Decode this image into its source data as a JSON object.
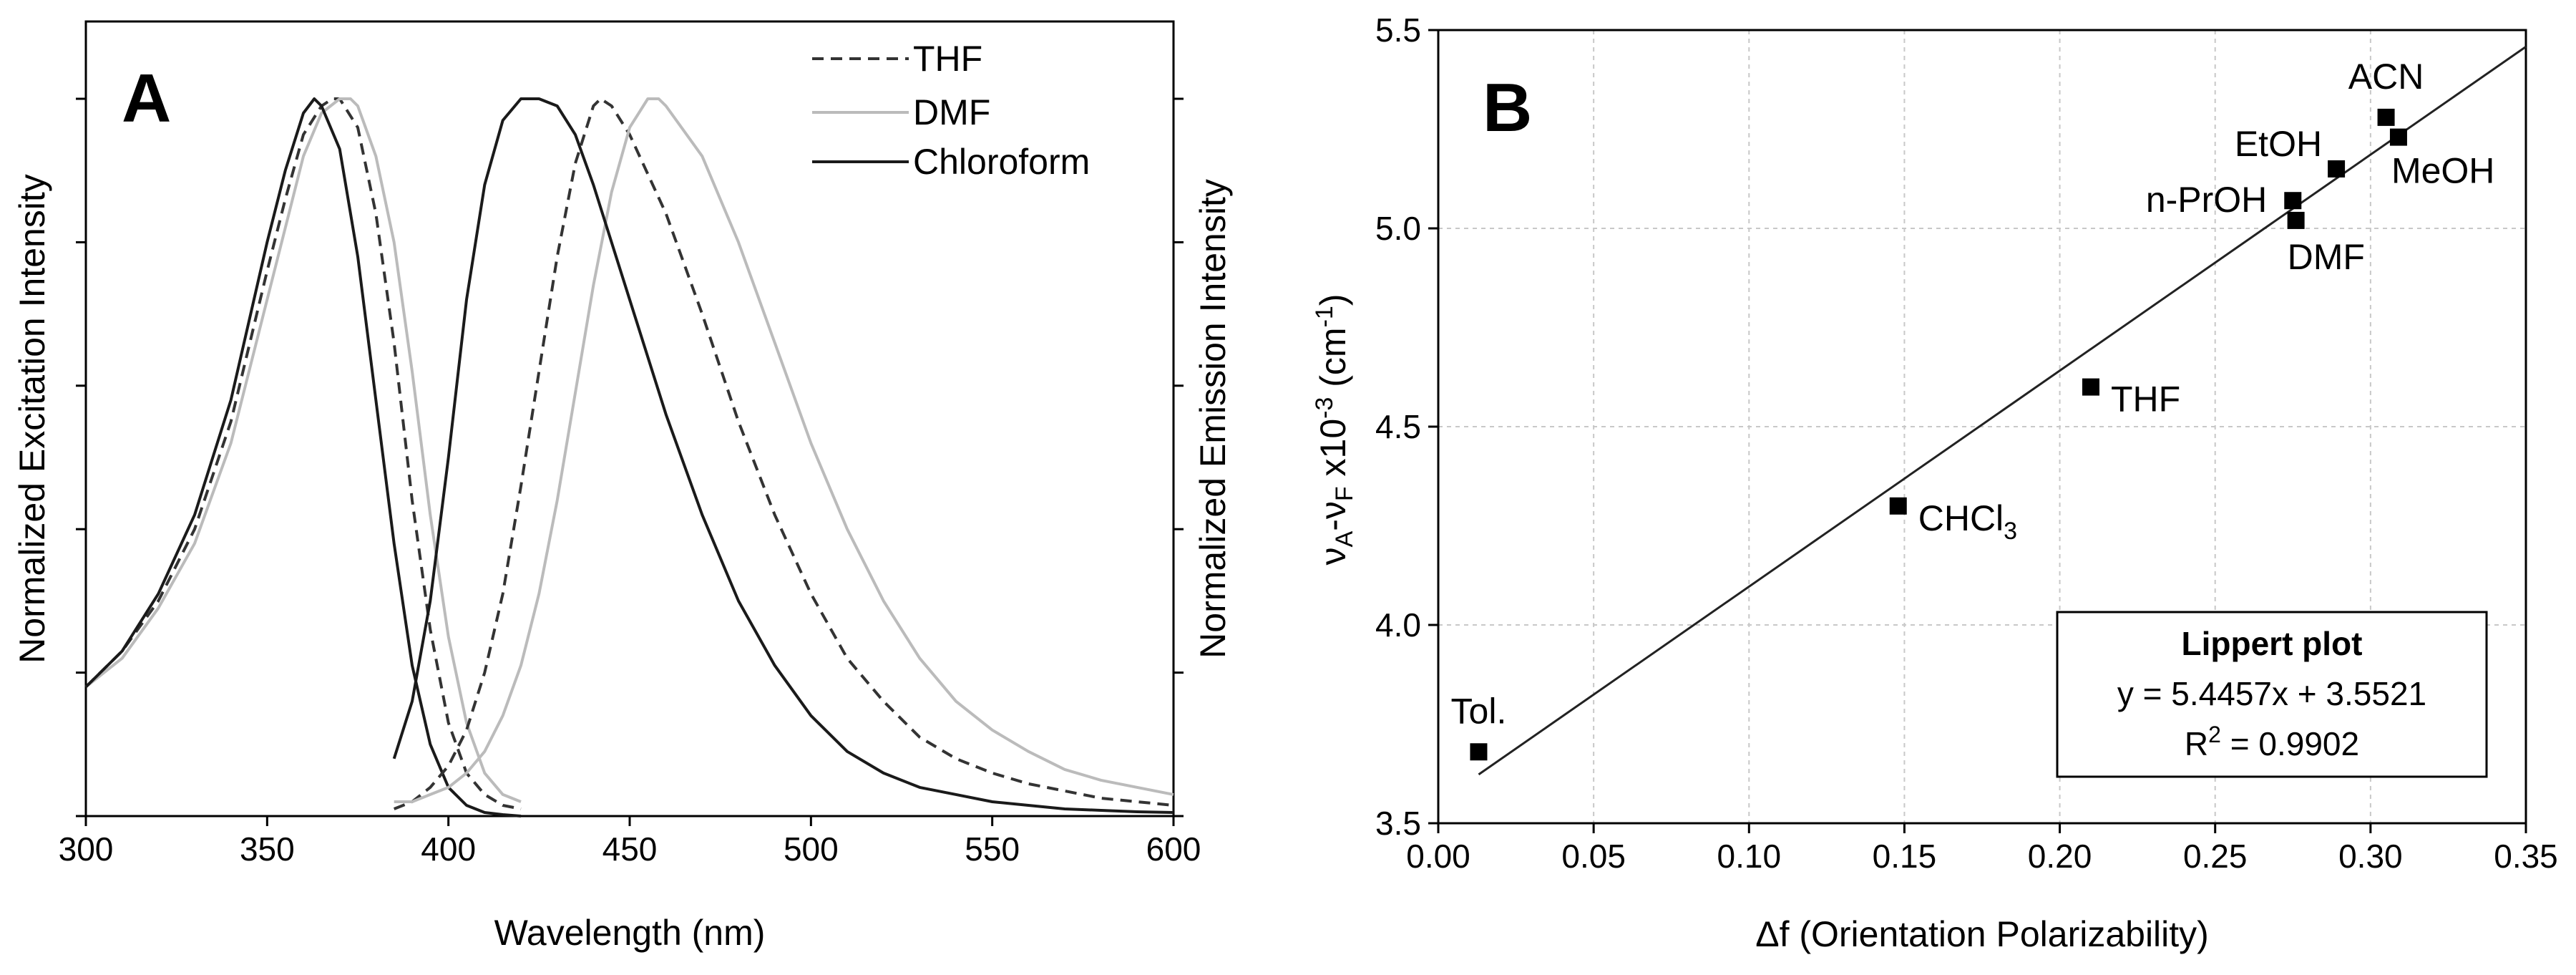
{
  "chart_data": [
    {
      "type": "line",
      "panel_label": "A",
      "title": "",
      "xlabel": "Wavelength (nm)",
      "ylabel": "Normalized Excitation Intensity",
      "ylabel_right": "Normalized Emission Intensity",
      "xlim": [
        300,
        600
      ],
      "ylim": [
        0,
        1.0
      ],
      "x_ticks": [
        "300",
        "350",
        "400",
        "450",
        "500",
        "550",
        "600"
      ],
      "grid": false,
      "legend_position": "top-right",
      "legend": [
        "THF",
        "DMF",
        "Chloroform"
      ],
      "series": [
        {
          "name": "THF",
          "kind": "excitation",
          "style": "dashed",
          "color": "#333333",
          "x": [
            300,
            310,
            320,
            330,
            340,
            350,
            355,
            360,
            365,
            368,
            370,
            375,
            380,
            385,
            390,
            395,
            400,
            405,
            410,
            415,
            420
          ],
          "y": [
            0.18,
            0.23,
            0.3,
            0.4,
            0.55,
            0.76,
            0.86,
            0.95,
            0.99,
            1.0,
            1.0,
            0.96,
            0.84,
            0.66,
            0.44,
            0.26,
            0.13,
            0.06,
            0.03,
            0.015,
            0.01
          ]
        },
        {
          "name": "DMF",
          "kind": "excitation",
          "style": "solid",
          "color": "#bbbbbb",
          "x": [
            300,
            310,
            320,
            330,
            340,
            350,
            355,
            360,
            365,
            370,
            373,
            375,
            380,
            385,
            390,
            395,
            400,
            405,
            410,
            415,
            420
          ],
          "y": [
            0.18,
            0.22,
            0.29,
            0.38,
            0.52,
            0.72,
            0.82,
            0.92,
            0.98,
            1.0,
            1.0,
            0.99,
            0.92,
            0.8,
            0.62,
            0.42,
            0.25,
            0.13,
            0.06,
            0.03,
            0.02
          ]
        },
        {
          "name": "Chloroform",
          "kind": "excitation",
          "style": "solid",
          "color": "#1a1a1a",
          "x": [
            300,
            310,
            320,
            330,
            340,
            350,
            355,
            360,
            363,
            365,
            370,
            375,
            380,
            385,
            390,
            395,
            400,
            405,
            410,
            415,
            420
          ],
          "y": [
            0.18,
            0.23,
            0.31,
            0.42,
            0.58,
            0.8,
            0.9,
            0.98,
            1.0,
            0.99,
            0.93,
            0.78,
            0.58,
            0.38,
            0.21,
            0.1,
            0.04,
            0.015,
            0.005,
            0.002,
            0.0
          ]
        },
        {
          "name": "THF",
          "kind": "emission",
          "style": "dashed",
          "color": "#333333",
          "x": [
            385,
            390,
            395,
            400,
            405,
            410,
            415,
            420,
            425,
            430,
            435,
            440,
            442,
            445,
            450,
            460,
            470,
            480,
            490,
            500,
            510,
            520,
            530,
            540,
            550,
            560,
            570,
            580,
            590,
            600
          ],
          "y": [
            0.01,
            0.02,
            0.04,
            0.07,
            0.12,
            0.2,
            0.31,
            0.46,
            0.62,
            0.78,
            0.91,
            0.99,
            1.0,
            0.99,
            0.95,
            0.84,
            0.7,
            0.55,
            0.42,
            0.31,
            0.22,
            0.16,
            0.11,
            0.08,
            0.06,
            0.045,
            0.035,
            0.025,
            0.02,
            0.015
          ]
        },
        {
          "name": "DMF",
          "kind": "emission",
          "style": "solid",
          "color": "#bbbbbb",
          "x": [
            385,
            390,
            395,
            400,
            405,
            410,
            415,
            420,
            425,
            430,
            435,
            440,
            445,
            450,
            455,
            458,
            460,
            470,
            480,
            490,
            500,
            510,
            520,
            530,
            540,
            550,
            560,
            570,
            580,
            590,
            600
          ],
          "y": [
            0.02,
            0.02,
            0.03,
            0.04,
            0.06,
            0.09,
            0.14,
            0.21,
            0.31,
            0.44,
            0.59,
            0.74,
            0.87,
            0.96,
            1.0,
            1.0,
            0.99,
            0.92,
            0.8,
            0.66,
            0.52,
            0.4,
            0.3,
            0.22,
            0.16,
            0.12,
            0.09,
            0.065,
            0.05,
            0.04,
            0.03
          ]
        },
        {
          "name": "Chloroform",
          "kind": "emission",
          "style": "solid",
          "color": "#1a1a1a",
          "x": [
            385,
            390,
            395,
            400,
            405,
            410,
            415,
            420,
            425,
            430,
            435,
            440,
            450,
            460,
            470,
            480,
            490,
            500,
            510,
            520,
            530,
            540,
            550,
            560,
            570,
            580,
            590,
            600
          ],
          "y": [
            0.08,
            0.16,
            0.3,
            0.5,
            0.72,
            0.88,
            0.97,
            1.0,
            1.0,
            0.99,
            0.95,
            0.88,
            0.72,
            0.56,
            0.42,
            0.3,
            0.21,
            0.14,
            0.09,
            0.06,
            0.04,
            0.03,
            0.02,
            0.015,
            0.01,
            0.008,
            0.006,
            0.005
          ]
        }
      ]
    },
    {
      "type": "scatter",
      "panel_label": "B",
      "title": "",
      "xlabel": "Δf (Orientation Polarizability)",
      "ylabel": "νA-νF x10-3 (cm-1)",
      "ylabel_parts": {
        "nu_a": "ν",
        "sub_a": "A",
        "dash": "-",
        "nu_f": "ν",
        "sub_f": "F",
        "times": " x10",
        "exp": "-3",
        "unit_open": " (cm",
        "unit_exp": "-1",
        "unit_close": ")"
      },
      "xlim": [
        0.0,
        0.35
      ],
      "ylim": [
        3.5,
        5.5
      ],
      "x_ticks": [
        "0.00",
        "0.05",
        "0.10",
        "0.15",
        "0.20",
        "0.25",
        "0.30",
        "0.35"
      ],
      "y_ticks": [
        "3.5",
        "4.0",
        "4.5",
        "5.0",
        "5.5"
      ],
      "grid": true,
      "points": [
        {
          "label": "Tol.",
          "label_pos": "above",
          "x": 0.013,
          "y": 3.68
        },
        {
          "label": "CHCl",
          "label_sub": "3",
          "label_pos": "right",
          "x": 0.148,
          "y": 4.3
        },
        {
          "label": "THF",
          "label_pos": "right",
          "x": 0.21,
          "y": 4.6
        },
        {
          "label": "DMF",
          "label_pos": "below",
          "x": 0.276,
          "y": 5.02
        },
        {
          "label": "n-PrOH",
          "label_pos": "left",
          "x": 0.275,
          "y": 5.07
        },
        {
          "label": "EtOH",
          "label_pos": "above-left",
          "x": 0.289,
          "y": 5.15
        },
        {
          "label": "ACN",
          "label_pos": "above",
          "x": 0.305,
          "y": 5.28
        },
        {
          "label": "MeOH",
          "label_pos": "below-right",
          "x": 0.309,
          "y": 5.23
        }
      ],
      "fit": {
        "slope": 5.4457,
        "intercept": 3.5521,
        "x_range": [
          0.013,
          0.35
        ]
      },
      "annotation": {
        "title": "Lippert plot",
        "equation": "y = 5.4457x + 3.5521",
        "r2_prefix": "R",
        "r2_exp": "2",
        "r2_suffix": " = 0.9902",
        "position": "bottom-right"
      }
    }
  ]
}
